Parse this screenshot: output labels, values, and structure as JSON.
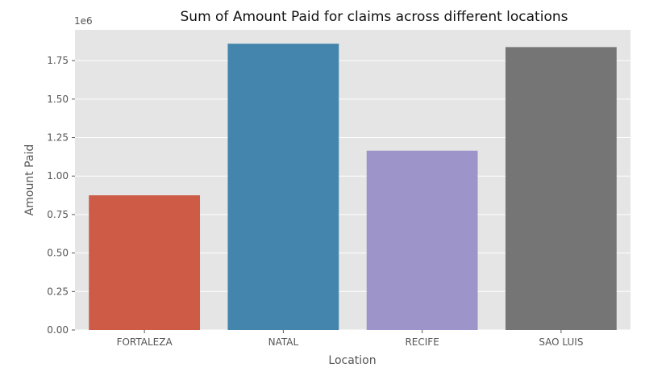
{
  "chart_data": {
    "type": "bar",
    "title": "Sum of Amount Paid for claims across different locations",
    "xlabel": "Location",
    "ylabel": "Amount Paid",
    "y_offset_label": "1e6",
    "categories": [
      "FORTALEZA",
      "NATAL",
      "RECIFE",
      "SAO LUIS"
    ],
    "values": [
      875000,
      1860000,
      1165000,
      1838000
    ],
    "ylim": [
      0,
      1950000
    ],
    "yticks": [
      0,
      250000,
      500000,
      750000,
      1000000,
      1250000,
      1500000,
      1750000
    ],
    "ytick_labels": [
      "0.00",
      "0.25",
      "0.50",
      "0.75",
      "1.00",
      "1.25",
      "1.50",
      "1.75"
    ],
    "colors": [
      "#cd5b46",
      "#4485ad",
      "#9d95c9",
      "#757575"
    ],
    "style": {
      "background": "#e5e5e5",
      "grid": true,
      "grid_color": "#ffffff"
    }
  }
}
